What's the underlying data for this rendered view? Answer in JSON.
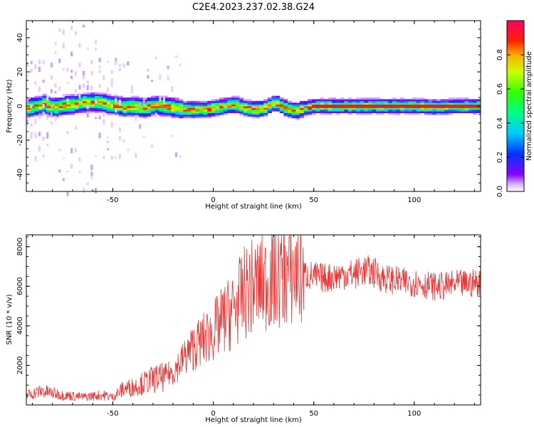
{
  "title": "C2E4.2023.237.02.38.G24",
  "chart_data": [
    {
      "type": "heatmap",
      "xlabel": "Height of straight line (km)",
      "ylabel": "Frequency (Hz)",
      "xlim": [
        -93,
        133
      ],
      "ylim": [
        -50,
        50
      ],
      "xticks": [
        -50,
        0,
        50,
        100
      ],
      "yticks": [
        -40,
        -20,
        0,
        20,
        40
      ],
      "colorbar": {
        "label": "Normalized spectral amplitude",
        "range": [
          0,
          1
        ],
        "ticks": [
          0.0,
          0.2,
          0.4,
          0.6,
          0.8
        ],
        "colormap": "gist_rainbow"
      },
      "ridge": {
        "x": [
          -93,
          -85,
          -80,
          -75,
          -70,
          -65,
          -60,
          -55,
          -50,
          -45,
          -40,
          -35,
          -30,
          -25,
          -20,
          -15,
          -10,
          -5,
          0,
          5,
          10,
          15,
          20,
          25,
          30,
          35,
          40,
          45,
          50,
          60,
          70,
          80,
          90,
          100,
          110,
          120,
          133
        ],
        "y": [
          -1,
          1,
          -1,
          0.5,
          1,
          2,
          2.5,
          1.5,
          0.5,
          -0.5,
          0,
          -1,
          0.5,
          0,
          -1,
          -2,
          -2,
          -2,
          -1,
          0,
          1,
          -1,
          -2,
          -1,
          2,
          -1,
          -3,
          -1,
          0,
          0,
          0,
          0,
          0,
          0,
          -0.5,
          0,
          0
        ]
      }
    },
    {
      "type": "line",
      "xlabel": "Height of straight line (km)",
      "ylabel": "SNR (10 * v/v)",
      "xlim": [
        -93,
        133
      ],
      "ylim": [
        0,
        8600
      ],
      "xticks": [
        -50,
        0,
        50,
        100
      ],
      "yticks": [
        2000,
        4000,
        6000,
        8000
      ],
      "color": "#ee3333",
      "series": [
        {
          "x": [
            -93,
            -85,
            -80,
            -75,
            -70,
            -65,
            -60,
            -55,
            -50,
            -45,
            -40,
            -35,
            -30,
            -25,
            -20,
            -15,
            -10,
            -5,
            0,
            5,
            10,
            15,
            20,
            25,
            30,
            35,
            40,
            45,
            50,
            55,
            60,
            65,
            70,
            75,
            80,
            85,
            90,
            95,
            100,
            105,
            110,
            115,
            120,
            125,
            133
          ],
          "values": [
            500,
            700,
            600,
            500,
            450,
            400,
            450,
            500,
            400,
            800,
            900,
            1100,
            1300,
            1400,
            1700,
            2300,
            2900,
            3300,
            3700,
            4300,
            4800,
            5600,
            6000,
            6200,
            6400,
            6600,
            6700,
            6600,
            6500,
            6400,
            6500,
            6600,
            6600,
            6800,
            6700,
            6400,
            6300,
            6200,
            6200,
            6100,
            6000,
            6000,
            6100,
            6100,
            6200
          ]
        }
      ]
    }
  ]
}
